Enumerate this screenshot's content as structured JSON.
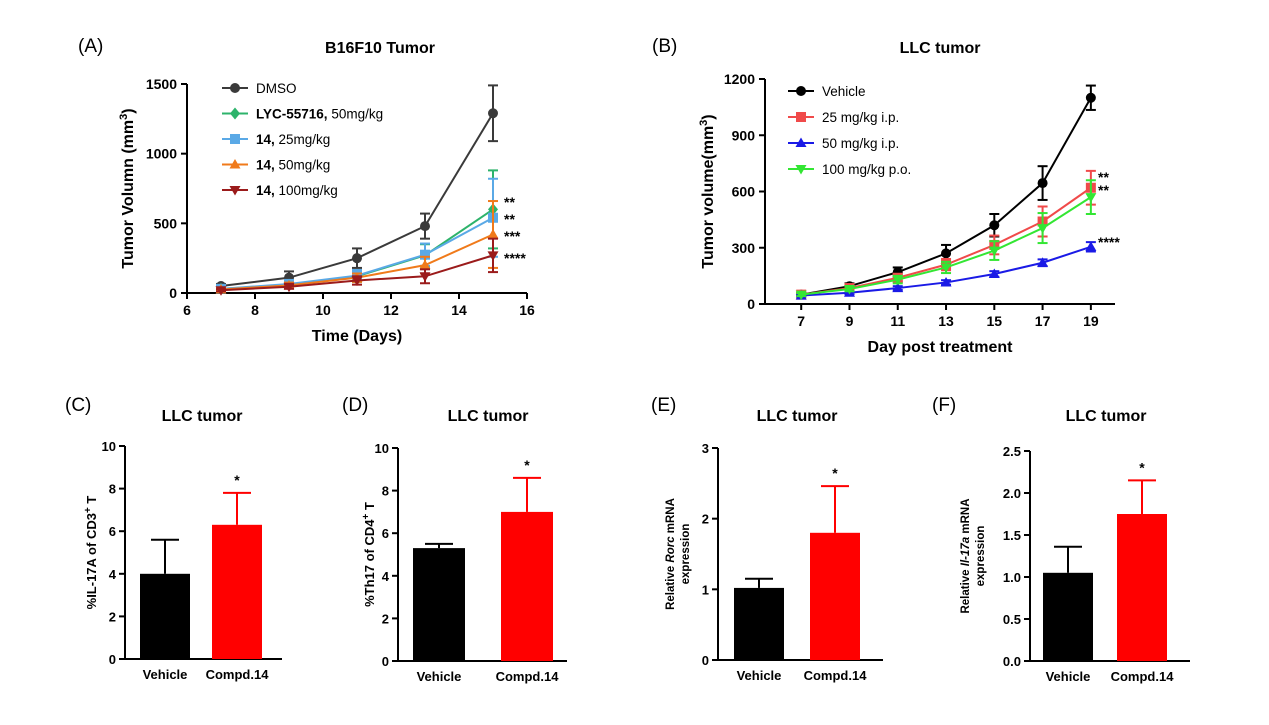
{
  "chart_data": [
    {
      "id": "A",
      "panel_label": "(A)",
      "type": "line",
      "title": "B16F10 Tumor",
      "xlabel": "Time (Days)",
      "ylabel_main": "Tumor Volumn (mm",
      "ylabel_sup": "3",
      "ylabel_close": ")",
      "xlim": [
        6,
        16
      ],
      "ylim": [
        0,
        1500
      ],
      "xticks": [
        "6",
        "8",
        "10",
        "12",
        "14",
        "16"
      ],
      "yticks": [
        "0",
        "500",
        "1000",
        "1500"
      ],
      "x": [
        7,
        9,
        11,
        13,
        15
      ],
      "series": [
        {
          "name_bold": "",
          "name": "DMSO",
          "color": "#3a3a3a",
          "marker": "circle",
          "values": [
            50,
            110,
            250,
            480,
            1290
          ],
          "errors": [
            15,
            45,
            70,
            90,
            200
          ]
        },
        {
          "name_bold": "LYC-55716,",
          "name": " 50mg/kg",
          "color": "#2db36b",
          "marker": "diamond",
          "values": [
            30,
            60,
            120,
            270,
            600
          ],
          "errors": [
            10,
            20,
            40,
            80,
            280
          ]
        },
        {
          "name_bold": "14,",
          "name": " 25mg/kg",
          "color": "#5aa9e6",
          "marker": "square",
          "values": [
            30,
            65,
            125,
            275,
            540
          ],
          "errors": [
            10,
            20,
            40,
            80,
            280
          ]
        },
        {
          "name_bold": "14,",
          "name": " 50mg/kg",
          "color": "#f07a1a",
          "marker": "triangle-up",
          "values": [
            25,
            55,
            110,
            200,
            420
          ],
          "errors": [
            10,
            20,
            30,
            60,
            240
          ]
        },
        {
          "name_bold": "14,",
          "name": " 100mg/kg",
          "color": "#9b1b1b",
          "marker": "triangle-down",
          "values": [
            20,
            45,
            90,
            120,
            270
          ],
          "errors": [
            8,
            15,
            30,
            50,
            120
          ]
        }
      ],
      "significance": [
        "**",
        "**",
        "***",
        "****"
      ],
      "grid": false,
      "legend_position": "top-left"
    },
    {
      "id": "B",
      "panel_label": "(B)",
      "type": "line",
      "title": "LLC tumor",
      "xlabel": "Day post treatment",
      "ylabel_main": "Tumor volume(mm",
      "ylabel_sup": "3",
      "ylabel_close": ")",
      "xlim": [
        5.5,
        20
      ],
      "ylim": [
        0,
        1200
      ],
      "xticks": [
        "7",
        "9",
        "11",
        "13",
        "15",
        "17",
        "19"
      ],
      "yticks": [
        "0",
        "300",
        "600",
        "900",
        "1200"
      ],
      "x": [
        7,
        9,
        11,
        13,
        15,
        17,
        19
      ],
      "series": [
        {
          "name": "Vehicle",
          "color": "#000000",
          "marker": "circle",
          "values": [
            50,
            95,
            170,
            270,
            420,
            645,
            1100
          ],
          "errors": [
            8,
            15,
            25,
            45,
            60,
            90,
            65
          ]
        },
        {
          "name": "25 mg/kg i.p.",
          "color": "#f04a4a",
          "marker": "square",
          "values": [
            50,
            85,
            140,
            210,
            315,
            440,
            620
          ],
          "errors": [
            8,
            12,
            20,
            30,
            50,
            80,
            90
          ]
        },
        {
          "name": "50 mg/kg i.p.",
          "color": "#1a1ae6",
          "marker": "triangle-up",
          "values": [
            45,
            60,
            85,
            115,
            160,
            220,
            305
          ],
          "errors": [
            5,
            8,
            10,
            12,
            15,
            18,
            25
          ]
        },
        {
          "name": "100 mg/kg p.o.",
          "color": "#33e633",
          "marker": "triangle-down",
          "values": [
            50,
            80,
            130,
            195,
            285,
            405,
            570
          ],
          "errors": [
            8,
            12,
            20,
            30,
            50,
            80,
            90
          ]
        }
      ],
      "significance": [
        "**",
        "**",
        "****"
      ],
      "grid": false,
      "legend_position": "top-left"
    },
    {
      "id": "C",
      "panel_label": "(C)",
      "type": "bar",
      "title": "LLC tumor",
      "ylabel_pre": "%IL-17A of CD3",
      "ylabel_sup": "+",
      "ylabel_post": " T",
      "ylim": [
        0,
        10
      ],
      "yticks": [
        "0",
        "2",
        "4",
        "6",
        "8",
        "10"
      ],
      "categories": [
        "Vehicle",
        "Compd.14"
      ],
      "values": [
        4.0,
        6.3
      ],
      "errors": [
        1.6,
        1.5
      ],
      "colors": [
        "#000000",
        "#ff0000"
      ],
      "significance": "*"
    },
    {
      "id": "D",
      "panel_label": "(D)",
      "type": "bar",
      "title": "LLC tumor",
      "ylabel_pre": "%Th17 of CD4",
      "ylabel_sup": "+",
      "ylabel_post": " T",
      "ylim": [
        0,
        10
      ],
      "yticks": [
        "0",
        "2",
        "4",
        "6",
        "8",
        "10"
      ],
      "categories": [
        "Vehicle",
        "Compd.14"
      ],
      "values": [
        5.3,
        7.0
      ],
      "errors": [
        0.2,
        1.6
      ],
      "colors": [
        "#000000",
        "#ff0000"
      ],
      "significance": "*"
    },
    {
      "id": "E",
      "panel_label": "(E)",
      "type": "bar",
      "title": "LLC tumor",
      "ylabel_line1_pre": "Relative ",
      "ylabel_line1_italic": "Rorc",
      "ylabel_line1_post": " mRNA",
      "ylabel_line2": "expression",
      "ylim": [
        0,
        3
      ],
      "yticks": [
        "0",
        "1",
        "2",
        "3"
      ],
      "categories": [
        "Vehicle",
        "Compd.14"
      ],
      "values": [
        1.02,
        1.8
      ],
      "errors": [
        0.13,
        0.66
      ],
      "colors": [
        "#000000",
        "#ff0000"
      ],
      "significance": "*"
    },
    {
      "id": "F",
      "panel_label": "(F)",
      "type": "bar",
      "title": "LLC tumor",
      "ylabel_line1_pre": "Relative ",
      "ylabel_line1_italic": "Il-17a",
      "ylabel_line1_post": " mRNA",
      "ylabel_line2": "expression",
      "ylim": [
        0,
        2.5
      ],
      "yticks": [
        "0.0",
        "0.5",
        "1.0",
        "1.5",
        "2.0",
        "2.5"
      ],
      "categories": [
        "Vehicle",
        "Compd.14"
      ],
      "values": [
        1.05,
        1.75
      ],
      "errors": [
        0.31,
        0.4
      ],
      "colors": [
        "#000000",
        "#ff0000"
      ],
      "significance": "*"
    }
  ]
}
